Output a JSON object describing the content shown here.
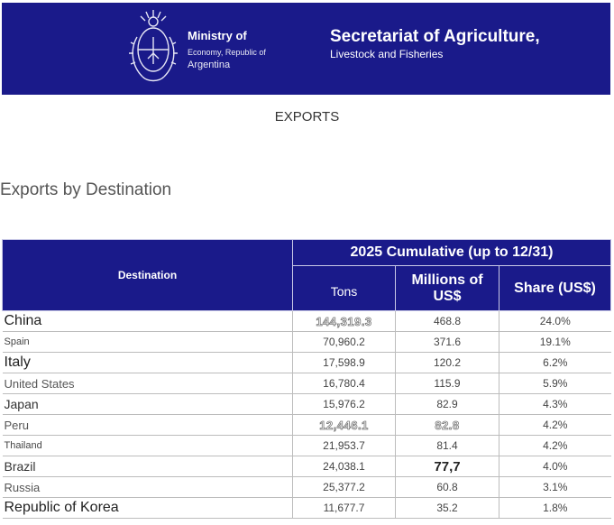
{
  "header": {
    "ministry_line1": "Ministry of",
    "ministry_line2": "Economy, Republic of",
    "ministry_line3": "Argentina",
    "secretariat_line1": "Secretariat of Agriculture,",
    "secretariat_line2": "Livestock and Fisheries",
    "banner_color": "#1a1a8a"
  },
  "page_title": "EXPORTS",
  "section_title": "Exports by Destination",
  "table": {
    "col_destination": "Destination",
    "group_header": "2025 Cumulative (up to 12/31)",
    "col_tons": "Tons",
    "col_millions": "Millions of US$",
    "col_share": "Share (US$)",
    "rows": [
      {
        "destination": "China",
        "tons": "144,319.3",
        "millions": "468.8",
        "share": "24.0%"
      },
      {
        "destination": "Spain",
        "tons": "70,960.2",
        "millions": "371.6",
        "share": "19.1%"
      },
      {
        "destination": "Italy",
        "tons": "17,598.9",
        "millions": "120.2",
        "share": "6.2%"
      },
      {
        "destination": "United States",
        "tons": "16,780.4",
        "millions": "115.9",
        "share": "5.9%"
      },
      {
        "destination": "Japan",
        "tons": "15,976.2",
        "millions": "82.9",
        "share": "4.3%"
      },
      {
        "destination": "Peru",
        "tons": "12,446.1",
        "millions": "82.8",
        "share": "4.2%"
      },
      {
        "destination": "Thailand",
        "tons": "21,953.7",
        "millions": "81.4",
        "share": "4.2%"
      },
      {
        "destination": "Brazil",
        "tons": "24,038.1",
        "millions": "77,7",
        "share": "4.0%"
      },
      {
        "destination": "Russia",
        "tons": "25,377.2",
        "millions": "60.8",
        "share": "3.1%"
      },
      {
        "destination": "Republic of Korea",
        "tons": "11,677.7",
        "millions": "35.2",
        "share": "1.8%"
      }
    ]
  }
}
